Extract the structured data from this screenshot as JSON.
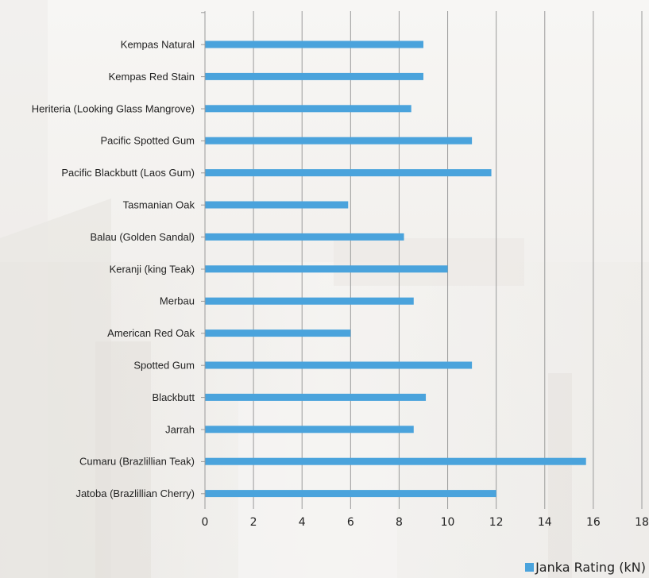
{
  "chart_data": {
    "type": "bar",
    "orientation": "horizontal",
    "categories": [
      "Kempas Natural",
      "Kempas Red Stain",
      "Heriteria (Looking Glass Mangrove)",
      "Pacific Spotted Gum",
      "Pacific Blackbutt (Laos Gum)",
      "Tasmanian Oak",
      "Balau (Golden Sandal)",
      "Keranji (king Teak)",
      "Merbau",
      "American Red Oak",
      "Spotted Gum",
      "Blackbutt",
      "Jarrah",
      "Cumaru (Brazlillian Teak)",
      "Jatoba (Brazlillian Cherry)"
    ],
    "series": [
      {
        "name": "Janka Rating (kN)",
        "color": "#4aa3dc",
        "values": [
          9.0,
          9.0,
          8.5,
          11.0,
          11.8,
          5.9,
          8.2,
          10.0,
          8.6,
          6.0,
          11.0,
          9.1,
          8.6,
          15.7,
          12.0
        ]
      }
    ],
    "xticks": [
      "0",
      "2",
      "4",
      "6",
      "8",
      "10",
      "12",
      "14",
      "16",
      "18"
    ],
    "xlim": [
      0,
      18
    ],
    "grid": true,
    "legend_position": "bottom-right",
    "title": "",
    "xlabel": "",
    "ylabel": ""
  }
}
